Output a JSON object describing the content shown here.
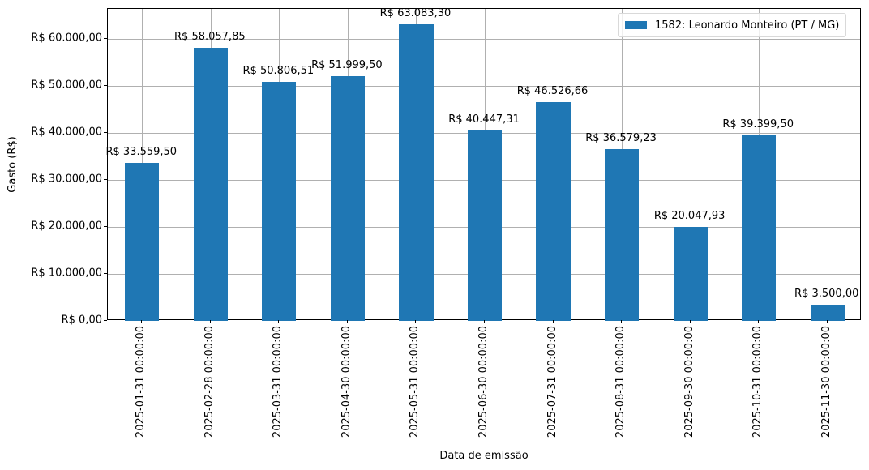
{
  "chart_data": {
    "type": "bar",
    "title": "",
    "xlabel": "Data de emissão",
    "ylabel": "Gasto (R$)",
    "ylim": [
      0,
      66300
    ],
    "grid": true,
    "legend_position": "upper right",
    "legend": [
      "1582: Leonardo Monteiro (PT / MG)"
    ],
    "categories": [
      "2025-01-31 00:00:00",
      "2025-02-28 00:00:00",
      "2025-03-31 00:00:00",
      "2025-04-30 00:00:00",
      "2025-05-31 00:00:00",
      "2025-06-30 00:00:00",
      "2025-07-31 00:00:00",
      "2025-08-31 00:00:00",
      "2025-09-30 00:00:00",
      "2025-10-31 00:00:00",
      "2025-11-30 00:00:00"
    ],
    "series": [
      {
        "name": "1582: Leonardo Monteiro (PT / MG)",
        "color": "#1f77b4",
        "values": [
          33559.5,
          58057.85,
          50806.51,
          51999.5,
          63083.3,
          40447.31,
          46526.66,
          36579.23,
          20047.93,
          39399.5,
          3500.0
        ],
        "labels": [
          "R$ 33.559,50",
          "R$ 58.057,85",
          "R$ 50.806,51",
          "R$ 51.999,50",
          "R$ 63.083,30",
          "R$ 40.447,31",
          "R$ 46.526,66",
          "R$ 36.579,23",
          "R$ 20.047,93",
          "R$ 39.399,50",
          "R$ 3.500,00"
        ]
      }
    ],
    "yticks": [
      0,
      10000,
      20000,
      30000,
      40000,
      50000,
      60000
    ],
    "ytick_labels": [
      "R$ 0,00",
      "R$ 10.000,00",
      "R$ 20.000,00",
      "R$ 30.000,00",
      "R$ 40.000,00",
      "R$ 50.000,00",
      "R$ 60.000,00"
    ]
  }
}
